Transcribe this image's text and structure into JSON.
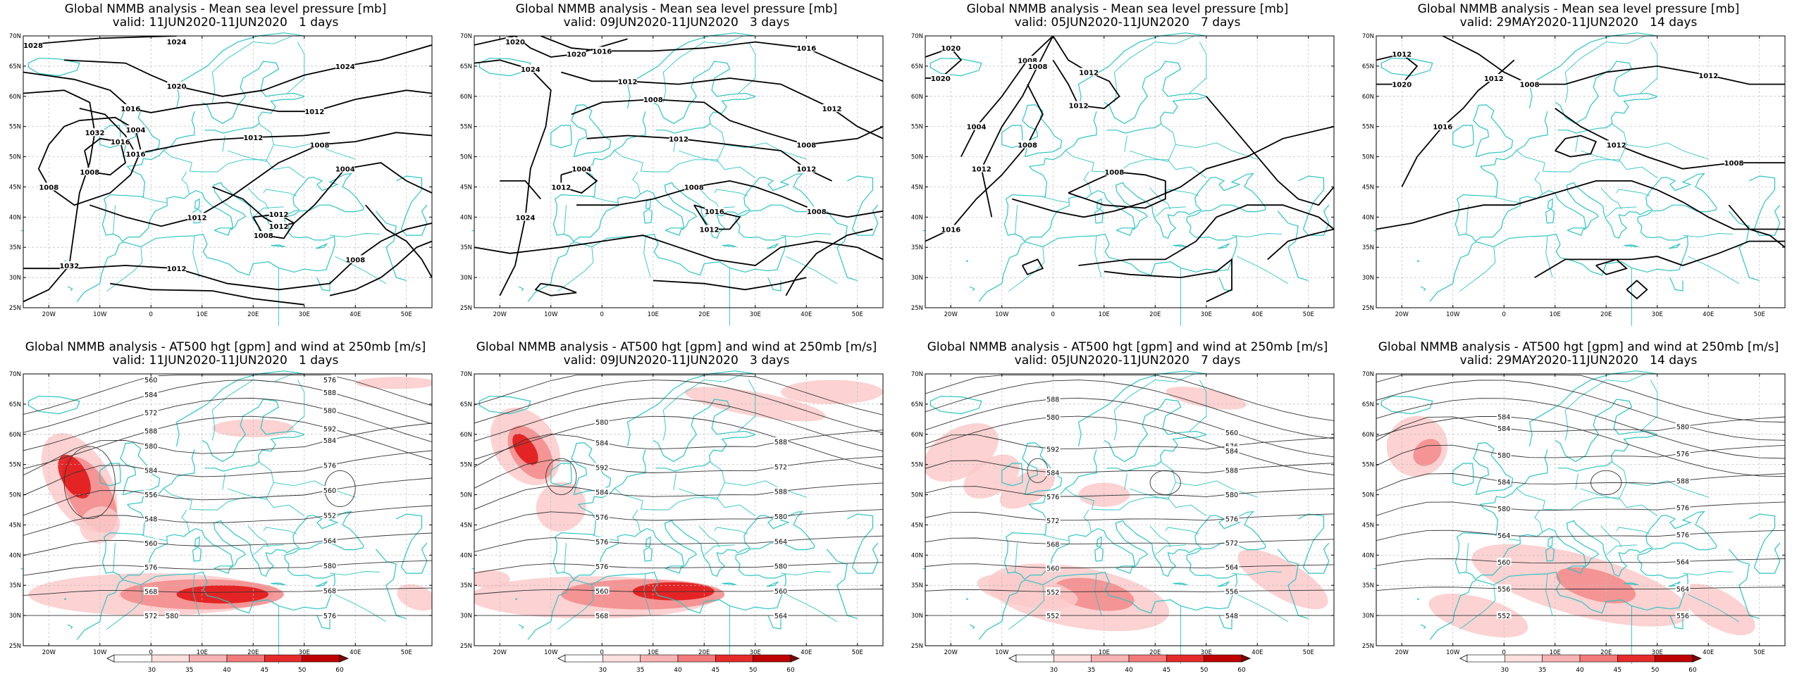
{
  "panels": [
    {
      "row": 0,
      "col": 0,
      "title": "Global NMMB analysis - Mean sea level pressure [mb]",
      "valid": "valid: 11JUN2020-11JUN2020   1 days",
      "type": "mslp",
      "labels": [
        "1032",
        "1032",
        "1028",
        "1024",
        "1020",
        "1024",
        "1016",
        "1012",
        "1016",
        "1012",
        "1016",
        "1008",
        "1004",
        "1008",
        "1012",
        "1008",
        "1012",
        "1004",
        "1012",
        "1008",
        "1012",
        "1008"
      ]
    },
    {
      "row": 0,
      "col": 1,
      "title": "Global NMMB analysis - Mean sea level pressure [mb]",
      "valid": "valid: 09JUN2020-11JUN2020   3 days",
      "type": "mslp",
      "labels": [
        "1024",
        "1024",
        "1020",
        "1020",
        "1016",
        "1016",
        "1012",
        "1012",
        "1008",
        "1008",
        "1012",
        "1012",
        "1004",
        "1012",
        "1008",
        "1008",
        "1016",
        "1012"
      ]
    },
    {
      "row": 0,
      "col": 2,
      "title": "Global NMMB analysis - Mean sea level pressure [mb]",
      "valid": "valid: 05JUN2020-11JUN2020   7 days",
      "type": "mslp",
      "labels": [
        "1020",
        "1020",
        "1004",
        "1008",
        "1012",
        "1008",
        "1008",
        "1016",
        "1012",
        "1012",
        "1008"
      ]
    },
    {
      "row": 0,
      "col": 3,
      "title": "Global NMMB analysis - Mean sea level pressure [mb]",
      "valid": "valid: 29MAY2020-11JUN2020   14 days",
      "type": "mslp",
      "labels": [
        "1012",
        "1020",
        "1008",
        "1012",
        "1016",
        "1012",
        "1012",
        "1008"
      ]
    },
    {
      "row": 1,
      "col": 0,
      "title": "Global NMMB analysis - AT500 hgt [gpm] and wind at 250mb [m/s]",
      "valid": "valid: 11JUN2020-11JUN2020   1 days",
      "type": "z500",
      "labels": [
        "572",
        "576",
        "568",
        "568",
        "576",
        "580",
        "560",
        "564",
        "548",
        "552",
        "556",
        "560",
        "584",
        "576",
        "580",
        "584",
        "588",
        "592",
        "572",
        "580",
        "584",
        "588",
        "560",
        "576",
        "580"
      ]
    },
    {
      "row": 1,
      "col": 1,
      "title": "Global NMMB analysis - AT500 hgt [gpm] and wind at 250mb [m/s]",
      "valid": "valid: 09JUN2020-11JUN2020   3 days",
      "type": "z500",
      "labels": [
        "568",
        "564",
        "560",
        "560",
        "576",
        "580",
        "576",
        "564",
        "576",
        "580",
        "584",
        "588",
        "592",
        "572",
        "584",
        "588",
        "580"
      ]
    },
    {
      "row": 1,
      "col": 2,
      "title": "Global NMMB analysis - AT500 hgt [gpm] and wind at 250mb [m/s]",
      "valid": "valid: 05JUN2020-11JUN2020   7 days",
      "type": "z500",
      "labels": [
        "552",
        "548",
        "552",
        "556",
        "560",
        "564",
        "568",
        "572",
        "572",
        "576",
        "576",
        "580",
        "584",
        "588",
        "592",
        "576",
        "580",
        "584",
        "588",
        "560"
      ]
    },
    {
      "row": 1,
      "col": 3,
      "title": "Global NMMB analysis - AT500 hgt [gpm] and wind at 250mb [m/s]",
      "valid": "valid: 29MAY2020-11JUN2020   14 days",
      "type": "z500",
      "labels": [
        "552",
        "556",
        "556",
        "564",
        "560",
        "564",
        "564",
        "576",
        "580",
        "576",
        "584",
        "588",
        "580",
        "576",
        "584",
        "580",
        "584"
      ]
    }
  ],
  "lat_ticks": [
    "70N",
    "65N",
    "60N",
    "55N",
    "50N",
    "45N",
    "40N",
    "35N",
    "30N",
    "25N"
  ],
  "lon_ticks": [
    "20W",
    "10W",
    "0",
    "10E",
    "20E",
    "30E",
    "40E",
    "50E"
  ],
  "colorbar": {
    "ticks": [
      "30",
      "35",
      "40",
      "45",
      "50",
      "60"
    ]
  },
  "colors": {
    "coast": "#2ec4c4",
    "contour": "#000000",
    "wind": "#e00000"
  }
}
